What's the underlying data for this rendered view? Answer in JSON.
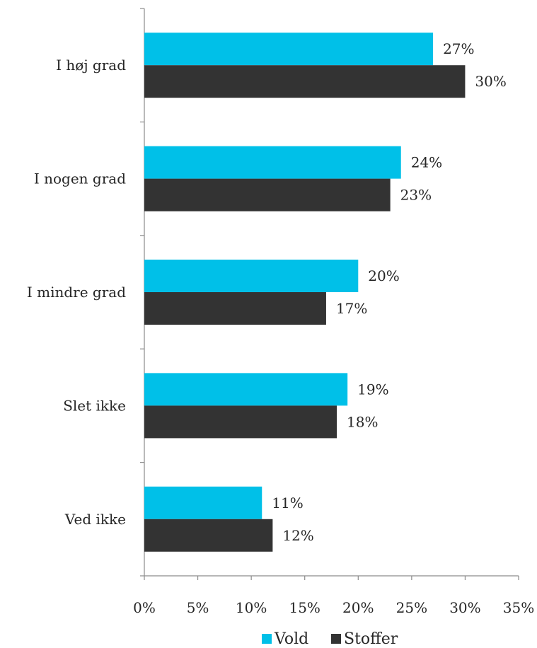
{
  "chart_data": {
    "type": "bar",
    "orientation": "horizontal",
    "title": "",
    "xlabel": "",
    "ylabel": "",
    "categories": [
      "I høj grad",
      "I nogen grad",
      "I mindre grad",
      "Slet ikke",
      "Ved ikke"
    ],
    "series": [
      {
        "name": "Vold",
        "color": "#00C0E8",
        "values": [
          27,
          24,
          20,
          19,
          11
        ],
        "labels": [
          "27%",
          "24%",
          "20%",
          "19%",
          "11%"
        ]
      },
      {
        "name": "Stoffer",
        "color": "#333333",
        "values": [
          30,
          23,
          17,
          18,
          12
        ],
        "labels": [
          "30%",
          "23%",
          "17%",
          "18%",
          "12%"
        ]
      }
    ],
    "xlim": [
      0,
      35
    ],
    "xticks": [
      0,
      5,
      10,
      15,
      20,
      25,
      30,
      35
    ],
    "xtick_labels": [
      "0%",
      "5%",
      "10%",
      "15%",
      "20%",
      "25%",
      "30%",
      "35%"
    ],
    "grid": false,
    "legend": "bottom"
  }
}
